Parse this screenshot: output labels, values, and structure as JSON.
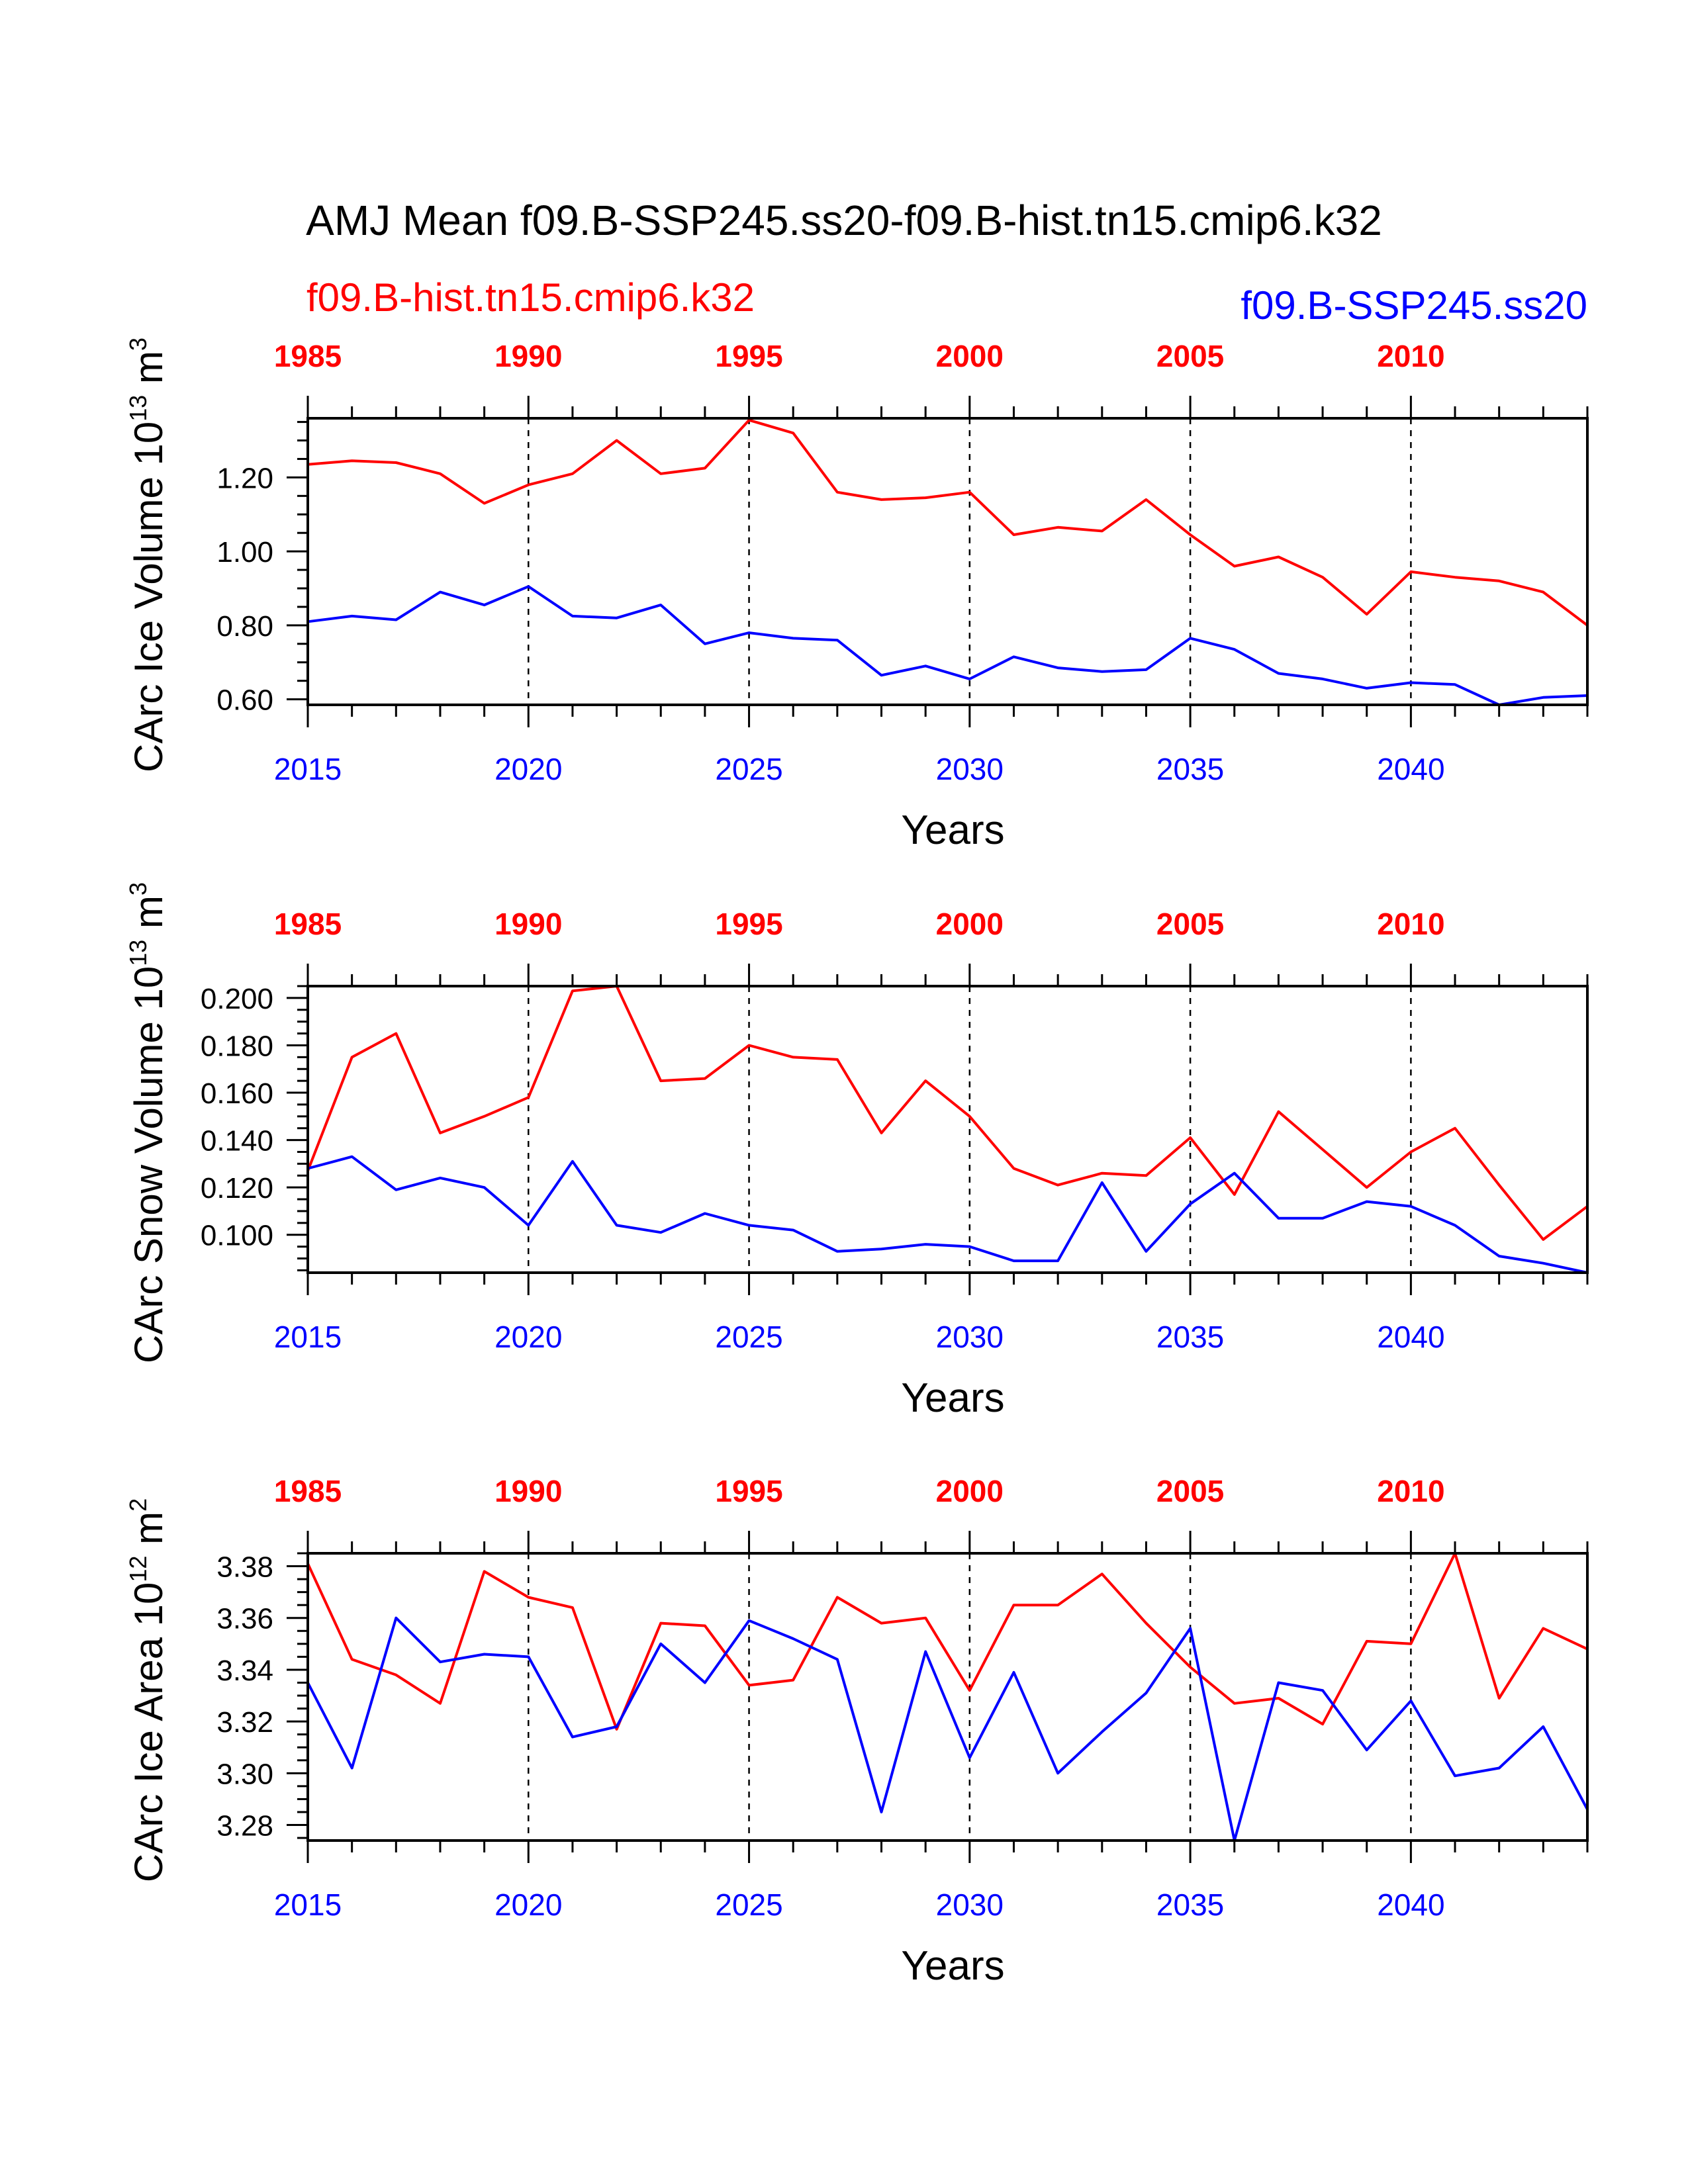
{
  "title": "AMJ Mean f09.B-SSP245.ss20-f09.B-hist.tn15.cmip6.k32",
  "legend": {
    "hist": "f09.B-hist.tn15.cmip6.k32",
    "ssp": "f09.B-SSP245.ss20"
  },
  "colors": {
    "hist": "#ff0000",
    "ssp": "#0000ff",
    "axes": "#000000"
  },
  "top_tick_labels": [
    "1985",
    "1990",
    "1995",
    "2000",
    "2005",
    "2010"
  ],
  "bottom_tick_labels": [
    "2015",
    "2020",
    "2025",
    "2030",
    "2035",
    "2040"
  ],
  "chart_data": [
    {
      "type": "line",
      "ylabel_main": "CArc Ice Volume 10",
      "ylabel_exp": "13",
      "ylabel_unit": " m",
      "ylabel_unit_exp": "3",
      "xlabel": "Years",
      "xlim": [
        2015,
        2044
      ],
      "ylim": [
        0.585,
        1.36
      ],
      "y_ticks": [
        "0.60",
        "0.80",
        "1.00",
        "1.20"
      ],
      "y_tick_values": [
        0.6,
        0.8,
        1.0,
        1.2
      ],
      "y_minor": 0.05,
      "grid": "dashed vertical lines every 5 years",
      "x_bottom": [
        2015,
        2016,
        2017,
        2018,
        2019,
        2020,
        2021,
        2022,
        2023,
        2024,
        2025,
        2026,
        2027,
        2028,
        2029,
        2030,
        2031,
        2032,
        2033,
        2034,
        2035,
        2036,
        2037,
        2038,
        2039,
        2040,
        2041,
        2042,
        2043,
        2044
      ],
      "x_top": [
        1985,
        1986,
        1987,
        1988,
        1989,
        1990,
        1991,
        1992,
        1993,
        1994,
        1995,
        1996,
        1997,
        1998,
        1999,
        2000,
        2001,
        2002,
        2003,
        2004,
        2005,
        2006,
        2007,
        2008,
        2009,
        2010,
        2011,
        2012,
        2013,
        2014
      ],
      "series": [
        {
          "name": "f09.B-hist.tn15.cmip6.k32",
          "color": "#ff0000",
          "values": [
            1.235,
            1.245,
            1.24,
            1.21,
            1.13,
            1.18,
            1.21,
            1.3,
            1.21,
            1.225,
            1.355,
            1.32,
            1.16,
            1.14,
            1.145,
            1.16,
            1.045,
            1.065,
            1.055,
            1.14,
            1.045,
            0.96,
            0.985,
            0.93,
            0.83,
            0.945,
            0.93,
            0.92,
            0.89,
            0.8
          ]
        },
        {
          "name": "f09.B-SSP245.ss20",
          "color": "#0000ff",
          "values": [
            0.81,
            0.825,
            0.815,
            0.89,
            0.855,
            0.905,
            0.825,
            0.82,
            0.855,
            0.75,
            0.78,
            0.765,
            0.76,
            0.665,
            0.69,
            0.655,
            0.715,
            0.685,
            0.675,
            0.68,
            0.765,
            0.735,
            0.67,
            0.655,
            0.63,
            0.645,
            0.64,
            0.585,
            0.605,
            0.61
          ]
        }
      ]
    },
    {
      "type": "line",
      "ylabel_main": "CArc Snow Volume 10",
      "ylabel_exp": "13",
      "ylabel_unit": " m",
      "ylabel_unit_exp": "3",
      "xlabel": "Years",
      "xlim": [
        2015,
        2044
      ],
      "ylim": [
        0.084,
        0.205
      ],
      "y_ticks": [
        "0.100",
        "0.120",
        "0.140",
        "0.160",
        "0.180",
        "0.200"
      ],
      "y_tick_values": [
        0.1,
        0.12,
        0.14,
        0.16,
        0.18,
        0.2
      ],
      "y_minor": 0.005,
      "grid": "dashed vertical lines every 5 years",
      "x_bottom": [
        2015,
        2016,
        2017,
        2018,
        2019,
        2020,
        2021,
        2022,
        2023,
        2024,
        2025,
        2026,
        2027,
        2028,
        2029,
        2030,
        2031,
        2032,
        2033,
        2034,
        2035,
        2036,
        2037,
        2038,
        2039,
        2040,
        2041,
        2042,
        2043,
        2044
      ],
      "x_top": [
        1985,
        1986,
        1987,
        1988,
        1989,
        1990,
        1991,
        1992,
        1993,
        1994,
        1995,
        1996,
        1997,
        1998,
        1999,
        2000,
        2001,
        2002,
        2003,
        2004,
        2005,
        2006,
        2007,
        2008,
        2009,
        2010,
        2011,
        2012,
        2013,
        2014
      ],
      "series": [
        {
          "name": "f09.B-hist.tn15.cmip6.k32",
          "color": "#ff0000",
          "values": [
            0.127,
            0.175,
            0.185,
            0.143,
            0.15,
            0.158,
            0.203,
            0.205,
            0.165,
            0.166,
            0.18,
            0.175,
            0.174,
            0.143,
            0.165,
            0.15,
            0.128,
            0.121,
            0.126,
            0.125,
            0.141,
            0.117,
            0.152,
            0.136,
            0.12,
            0.135,
            0.145,
            0.121,
            0.098,
            0.112
          ]
        },
        {
          "name": "f09.B-SSP245.ss20",
          "color": "#0000ff",
          "values": [
            0.128,
            0.133,
            0.119,
            0.124,
            0.12,
            0.104,
            0.131,
            0.104,
            0.101,
            0.109,
            0.104,
            0.102,
            0.093,
            0.094,
            0.096,
            0.095,
            0.089,
            0.089,
            0.122,
            0.093,
            0.113,
            0.126,
            0.107,
            0.107,
            0.114,
            0.112,
            0.104,
            0.091,
            0.088,
            0.084
          ]
        }
      ]
    },
    {
      "type": "line",
      "ylabel_main": "CArc Ice Area 10",
      "ylabel_exp": "12",
      "ylabel_unit": " m",
      "ylabel_unit_exp": "2",
      "xlabel": "Years",
      "xlim": [
        2015,
        2044
      ],
      "ylim": [
        3.274,
        3.385
      ],
      "y_ticks": [
        "3.28",
        "3.30",
        "3.32",
        "3.34",
        "3.36",
        "3.38"
      ],
      "y_tick_values": [
        3.28,
        3.3,
        3.32,
        3.34,
        3.36,
        3.38
      ],
      "y_minor": 0.005,
      "grid": "dashed vertical lines every 5 years",
      "x_bottom": [
        2015,
        2016,
        2017,
        2018,
        2019,
        2020,
        2021,
        2022,
        2023,
        2024,
        2025,
        2026,
        2027,
        2028,
        2029,
        2030,
        2031,
        2032,
        2033,
        2034,
        2035,
        2036,
        2037,
        2038,
        2039,
        2040,
        2041,
        2042,
        2043,
        2044
      ],
      "x_top": [
        1985,
        1986,
        1987,
        1988,
        1989,
        1990,
        1991,
        1992,
        1993,
        1994,
        1995,
        1996,
        1997,
        1998,
        1999,
        2000,
        2001,
        2002,
        2003,
        2004,
        2005,
        2006,
        2007,
        2008,
        2009,
        2010,
        2011,
        2012,
        2013,
        2014
      ],
      "series": [
        {
          "name": "f09.B-hist.tn15.cmip6.k32",
          "color": "#ff0000",
          "values": [
            3.381,
            3.344,
            3.338,
            3.327,
            3.378,
            3.368,
            3.364,
            3.317,
            3.358,
            3.357,
            3.334,
            3.336,
            3.368,
            3.358,
            3.36,
            3.332,
            3.365,
            3.365,
            3.377,
            3.358,
            3.341,
            3.327,
            3.329,
            3.319,
            3.351,
            3.35,
            3.385,
            3.329,
            3.356,
            3.348
          ]
        },
        {
          "name": "f09.B-SSP245.ss20",
          "color": "#0000ff",
          "values": [
            3.335,
            3.302,
            3.36,
            3.343,
            3.346,
            3.345,
            3.314,
            3.318,
            3.35,
            3.335,
            3.359,
            3.352,
            3.344,
            3.285,
            3.347,
            3.306,
            3.339,
            3.3,
            3.316,
            3.331,
            3.356,
            3.274,
            3.335,
            3.332,
            3.309,
            3.328,
            3.299,
            3.302,
            3.318,
            3.286
          ]
        }
      ]
    }
  ]
}
